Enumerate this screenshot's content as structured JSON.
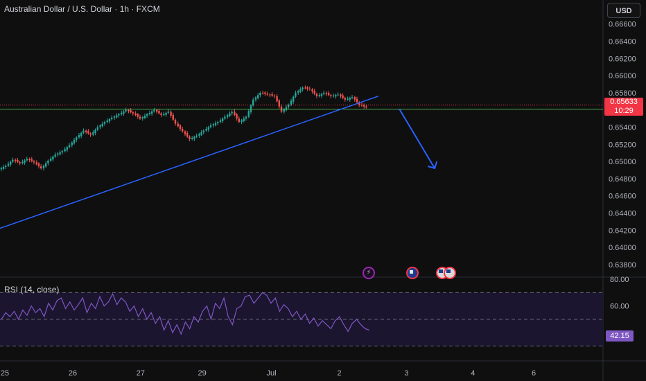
{
  "header": {
    "title": "Australian Dollar / U.S. Dollar · 1h · FXCM",
    "currency_button": "USD"
  },
  "colors": {
    "background": "#0f0f0f",
    "up": "#26a69a",
    "down": "#ef5350",
    "trendline": "#2962ff",
    "support_line": "#4caf50",
    "current_price_line": "#f23645",
    "rsi_line": "#7e57c2",
    "rsi_band": "#1c1530"
  },
  "chart_data": [
    {
      "type": "candlestick",
      "title": "Australian Dollar / U.S. Dollar · 1h · FXCM",
      "x_ticks": [
        "25",
        "26",
        "27",
        "29",
        "Jul",
        "2",
        "3",
        "4",
        "6"
      ],
      "y_ticks": [
        "0.66600",
        "0.66400",
        "0.66200",
        "0.66000",
        "0.65800",
        "0.65400",
        "0.65200",
        "0.65000",
        "0.64800",
        "0.64600",
        "0.64400",
        "0.64200",
        "0.64000",
        "0.63800"
      ],
      "ylim": [
        0.6367,
        0.6688
      ],
      "last_price": "0.65633",
      "countdown": "10:29",
      "support_level": 0.6561,
      "series_close": [
        0.6495,
        0.6502,
        0.6498,
        0.6503,
        0.6499,
        0.6492,
        0.6501,
        0.6508,
        0.6512,
        0.6519,
        0.6528,
        0.6536,
        0.6531,
        0.654,
        0.6546,
        0.6551,
        0.6555,
        0.656,
        0.6556,
        0.655,
        0.6555,
        0.656,
        0.6554,
        0.6558,
        0.6544,
        0.6535,
        0.6526,
        0.653,
        0.6536,
        0.6542,
        0.6546,
        0.6552,
        0.6558,
        0.6546,
        0.6552,
        0.6572,
        0.658,
        0.6578,
        0.6576,
        0.6558,
        0.6566,
        0.658,
        0.6586,
        0.6584,
        0.6576,
        0.658,
        0.6576,
        0.6578,
        0.6572,
        0.6575,
        0.6566,
        0.6563
      ],
      "trendline": {
        "start": {
          "index": -3,
          "price": 0.6415
        },
        "end": {
          "index": 53,
          "price": 0.6576
        }
      },
      "projection_arrow": {
        "start": {
          "index": 56,
          "price": 0.6561
        },
        "end": {
          "index": 61,
          "price": 0.6492
        }
      }
    },
    {
      "type": "line",
      "title": "RSI (14, close)",
      "value_label": "42.15",
      "y_ticks": [
        "80.00",
        "60.00"
      ],
      "levels": [
        70,
        50,
        30
      ],
      "ylim": [
        20,
        80
      ],
      "values": [
        50,
        55,
        52,
        56,
        50,
        57,
        53,
        60,
        55,
        58,
        52,
        62,
        57,
        64,
        66,
        58,
        63,
        57,
        61,
        66,
        55,
        62,
        58,
        67,
        60,
        63,
        69,
        61,
        66,
        63,
        56,
        60,
        52,
        58,
        50,
        55,
        47,
        52,
        42,
        49,
        40,
        46,
        39,
        48,
        43,
        52,
        48,
        56,
        60,
        50,
        62,
        58,
        66,
        52,
        46,
        58,
        60,
        67,
        68,
        62,
        66,
        70,
        68,
        62,
        66,
        56,
        61,
        58,
        52,
        56,
        50,
        54,
        47,
        51,
        45,
        49,
        46,
        43,
        49,
        52,
        46,
        41,
        47,
        50,
        46,
        43,
        42
      ]
    }
  ],
  "markers": {
    "flash": "⚡"
  }
}
